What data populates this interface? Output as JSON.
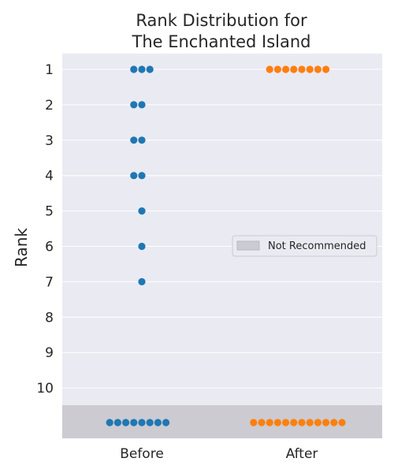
{
  "chart_data": {
    "type": "scatter",
    "title_lines": [
      "Rank Distribution for",
      "The Enchanted Island"
    ],
    "xlabel": "",
    "ylabel": "Rank",
    "categories": [
      "Before",
      "After"
    ],
    "y_ticks": [
      "1",
      "2",
      "3",
      "4",
      "5",
      "6",
      "7",
      "8",
      "9",
      "10"
    ],
    "not_recommended_label": "Not Recommended",
    "legend": {
      "label": "Not Recommended",
      "placement": "center-right"
    },
    "grid": true,
    "series": [
      {
        "category": "Before",
        "color": "#1f77b4",
        "counts": [
          {
            "rank": "1",
            "count": 3
          },
          {
            "rank": "2",
            "count": 2
          },
          {
            "rank": "3",
            "count": 2
          },
          {
            "rank": "4",
            "count": 2
          },
          {
            "rank": "5",
            "count": 1
          },
          {
            "rank": "6",
            "count": 1
          },
          {
            "rank": "7",
            "count": 1
          },
          {
            "rank": "Not Recommended",
            "count": 8
          }
        ]
      },
      {
        "category": "After",
        "color": "#ff7f0e",
        "counts": [
          {
            "rank": "1",
            "count": 8
          },
          {
            "rank": "Not Recommended",
            "count": 12
          }
        ]
      }
    ],
    "colors": {
      "plot_background": "#eaeaf2",
      "not_recommended_band": "#cbcbd1",
      "grid": "#ffffff"
    }
  }
}
